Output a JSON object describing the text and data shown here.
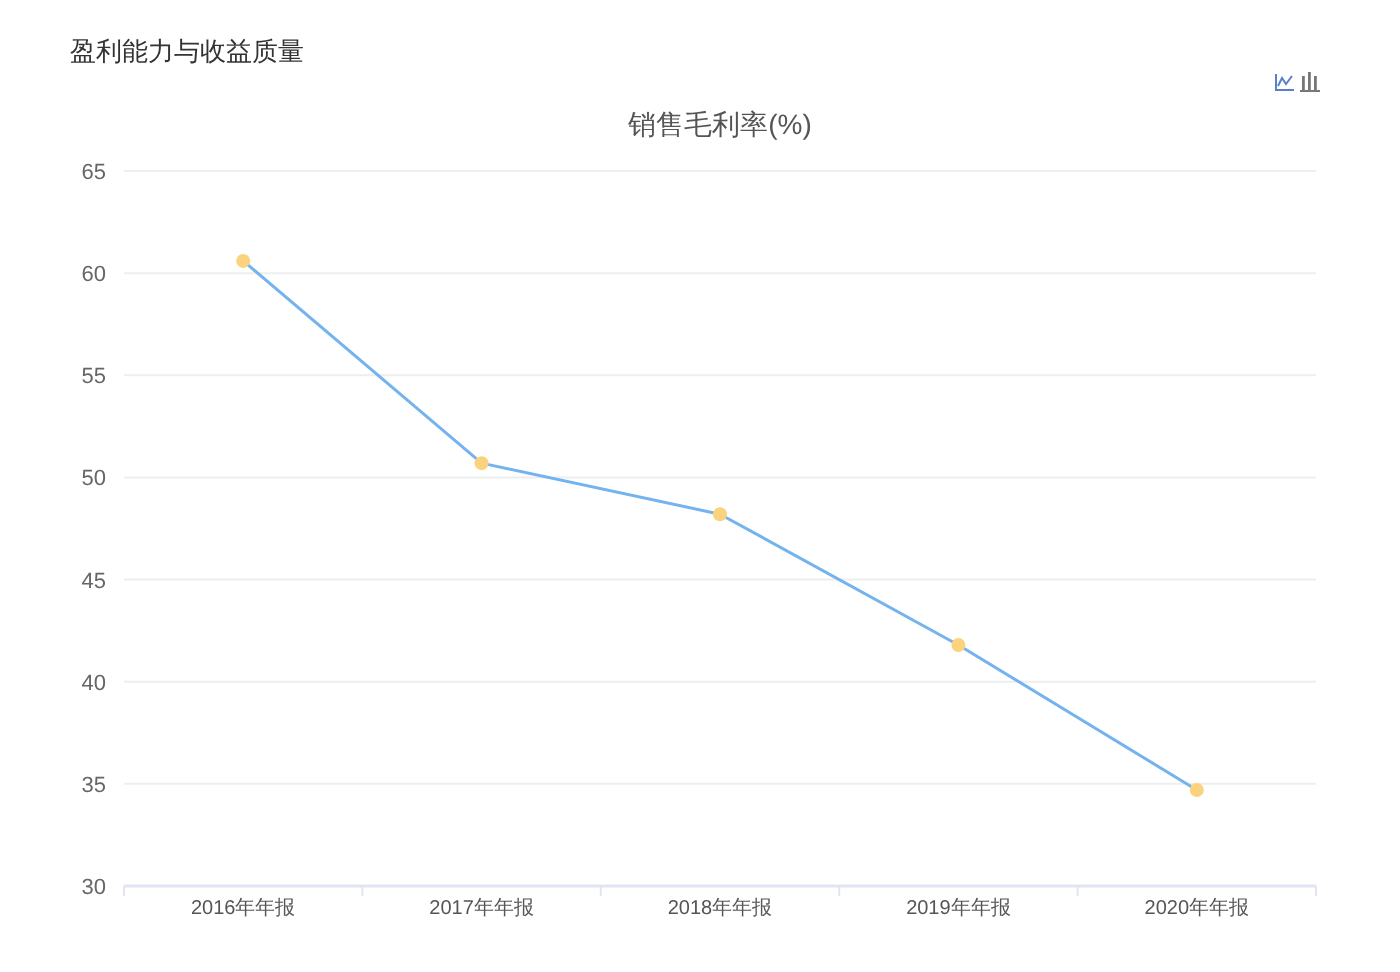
{
  "chart_data": {
    "type": "line",
    "title": "盈利能力与收益质量",
    "subtitle": "销售毛利率(%)",
    "categories": [
      "2016年年报",
      "2017年年报",
      "2018年年报",
      "2019年年报",
      "2020年年报"
    ],
    "series": [
      {
        "color": "#74b3ee",
        "colors": [
          "#fbd27d",
          "#fbd27d",
          "#fbd27d",
          "#fbd27d",
          "#fbd27d"
        ],
        "values": [
          60.6,
          50.7,
          48.2,
          41.8,
          34.7
        ]
      }
    ],
    "ylim": [
      30,
      65
    ],
    "yticks": [
      30,
      35,
      40,
      45,
      50,
      55,
      60,
      65
    ],
    "grid": "y",
    "marker": "circle",
    "line_style": "solid"
  }
}
